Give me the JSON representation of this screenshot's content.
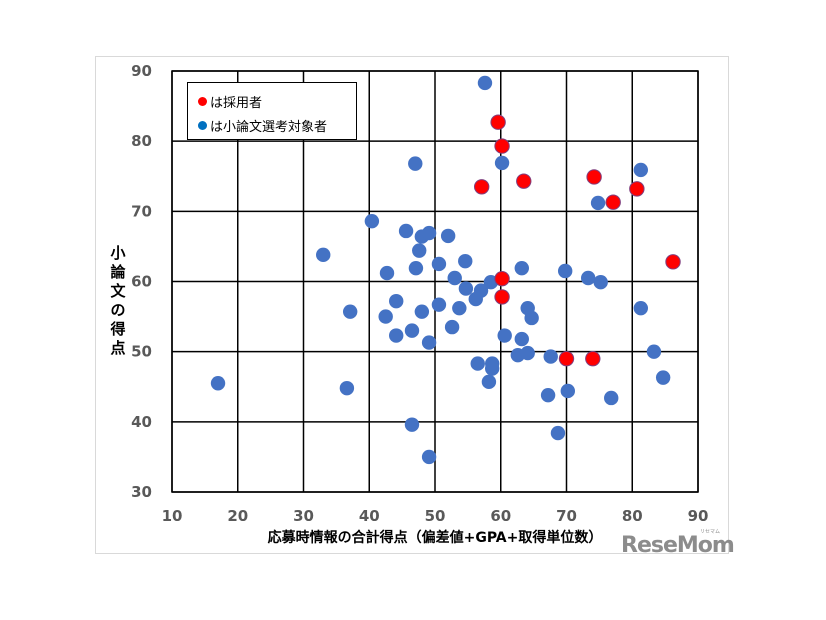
{
  "chart_data": {
    "type": "scatter",
    "title": "",
    "xlabel": "応募時情報の合計得点（偏差値+GPA+取得単位数）",
    "ylabel": "小論文の得点",
    "xlim": [
      10,
      90
    ],
    "ylim": [
      30,
      90
    ],
    "x_ticks": [
      10,
      20,
      30,
      40,
      50,
      60,
      70,
      80,
      90
    ],
    "y_ticks": [
      30,
      40,
      50,
      60,
      70,
      80,
      90
    ],
    "grid": true,
    "legend_position": "top-left inside",
    "series": [
      {
        "name": "は小論文選考対象者",
        "color": "#4472c4",
        "points": [
          [
            57.6,
            88.3
          ],
          [
            60.2,
            76.9
          ],
          [
            47.0,
            76.8
          ],
          [
            81.3,
            75.9
          ],
          [
            74.8,
            71.2
          ],
          [
            40.4,
            68.6
          ],
          [
            45.6,
            67.2
          ],
          [
            48.0,
            66.4
          ],
          [
            49.1,
            66.9
          ],
          [
            52.0,
            66.5
          ],
          [
            47.6,
            64.4
          ],
          [
            33.0,
            63.8
          ],
          [
            42.7,
            61.2
          ],
          [
            47.1,
            61.9
          ],
          [
            50.6,
            62.5
          ],
          [
            54.6,
            62.9
          ],
          [
            63.2,
            61.9
          ],
          [
            69.8,
            61.5
          ],
          [
            73.3,
            60.5
          ],
          [
            75.2,
            59.9
          ],
          [
            53.0,
            60.5
          ],
          [
            54.7,
            59.0
          ],
          [
            58.5,
            59.9
          ],
          [
            57.0,
            58.7
          ],
          [
            56.2,
            57.5
          ],
          [
            44.1,
            57.2
          ],
          [
            50.6,
            56.7
          ],
          [
            53.7,
            56.2
          ],
          [
            37.1,
            55.7
          ],
          [
            48.0,
            55.7
          ],
          [
            42.5,
            55.0
          ],
          [
            64.1,
            56.2
          ],
          [
            64.7,
            54.8
          ],
          [
            81.3,
            56.2
          ],
          [
            52.6,
            53.5
          ],
          [
            46.5,
            53.0
          ],
          [
            44.1,
            52.3
          ],
          [
            60.6,
            52.3
          ],
          [
            63.2,
            51.8
          ],
          [
            49.1,
            51.3
          ],
          [
            83.3,
            50.0
          ],
          [
            62.6,
            49.5
          ],
          [
            64.1,
            49.8
          ],
          [
            67.6,
            49.3
          ],
          [
            56.5,
            48.3
          ],
          [
            58.7,
            48.3
          ],
          [
            58.7,
            47.6
          ],
          [
            84.7,
            46.3
          ],
          [
            58.2,
            45.7
          ],
          [
            17.0,
            45.5
          ],
          [
            36.6,
            44.8
          ],
          [
            70.2,
            44.4
          ],
          [
            67.2,
            43.8
          ],
          [
            76.8,
            43.4
          ],
          [
            46.5,
            39.6
          ],
          [
            68.7,
            38.4
          ],
          [
            49.1,
            35.0
          ]
        ]
      },
      {
        "name": "は採用者",
        "color": "#ff0000",
        "points": [
          [
            59.6,
            82.7
          ],
          [
            60.2,
            79.3
          ],
          [
            63.5,
            74.3
          ],
          [
            57.1,
            73.5
          ],
          [
            74.2,
            74.9
          ],
          [
            80.7,
            73.2
          ],
          [
            77.1,
            71.3
          ],
          [
            86.2,
            62.8
          ],
          [
            60.2,
            60.4
          ],
          [
            60.2,
            57.8
          ],
          [
            70.0,
            49.0
          ],
          [
            74.0,
            49.0
          ]
        ]
      }
    ]
  },
  "legend": {
    "items": [
      {
        "label": "は採用者",
        "color": "#ff0000"
      },
      {
        "label": "は小論文選考対象者",
        "color": "#0070c0"
      }
    ]
  },
  "axes": {
    "xlabel": "応募時情報の合計得点（偏差値+GPA+取得単位数）",
    "ylabel_chars": [
      "小",
      "論",
      "文",
      "の",
      "得",
      "点"
    ]
  },
  "watermark": {
    "text": "ReseMom",
    "small": "リセマム"
  }
}
